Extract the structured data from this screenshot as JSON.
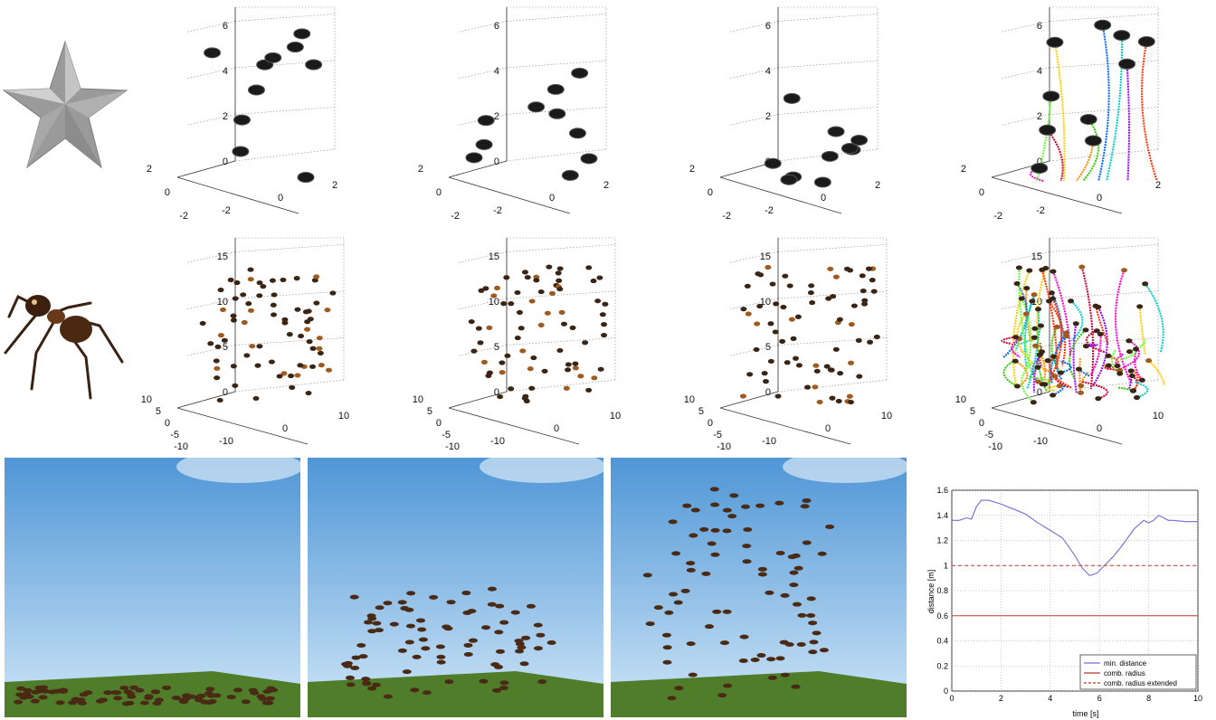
{
  "star_plots": {
    "z_ticks": [
      "0",
      "2",
      "4",
      "6"
    ],
    "y_ticks": [
      "2",
      "0",
      "-2"
    ],
    "x_ticks": [
      "-2",
      "0",
      "2"
    ]
  },
  "ant_plots": {
    "z_ticks": [
      "0",
      "5",
      "10",
      "15"
    ],
    "y_ticks": [
      "10",
      "5",
      "0",
      "-5",
      "-10"
    ],
    "x_ticks": [
      "-10",
      "0",
      "10"
    ]
  },
  "distance_chart": {
    "type": "line",
    "title": "",
    "xlabel": "time [s]",
    "ylabel": "distance [m]",
    "xlim": [
      0,
      10
    ],
    "ylim": [
      0,
      1.6
    ],
    "x_ticks": [
      "0",
      "2",
      "4",
      "6",
      "8",
      "10"
    ],
    "y_ticks": [
      "0",
      "0.2",
      "0.4",
      "0.6",
      "0.8",
      "1",
      "1.2",
      "1.4",
      "1.6"
    ],
    "grid": true,
    "legend_position": "bottom-right",
    "series": [
      {
        "name": "min. distance",
        "color": "#6f6fd0",
        "x": [
          0,
          0.3,
          0.6,
          0.8,
          1.0,
          1.2,
          1.5,
          2.0,
          2.5,
          3.0,
          3.5,
          4.0,
          4.5,
          5.0,
          5.3,
          5.6,
          5.9,
          6.2,
          6.6,
          7.0,
          7.4,
          7.8,
          8.0,
          8.2,
          8.4,
          8.6,
          8.8,
          9.0,
          9.5,
          10.0
        ],
        "y": [
          1.36,
          1.36,
          1.38,
          1.37,
          1.47,
          1.52,
          1.52,
          1.49,
          1.45,
          1.41,
          1.34,
          1.28,
          1.22,
          1.08,
          0.98,
          0.92,
          0.94,
          1.0,
          1.08,
          1.18,
          1.29,
          1.36,
          1.34,
          1.36,
          1.4,
          1.38,
          1.36,
          1.36,
          1.35,
          1.35
        ]
      },
      {
        "name": "comb. radius",
        "color": "#c0392b",
        "style": "solid",
        "x": [
          0,
          10
        ],
        "y": [
          0.6,
          0.6
        ]
      },
      {
        "name": "comb. radius extended",
        "color": "#c0392b",
        "style": "dashed",
        "x": [
          0,
          10
        ],
        "y": [
          1.0,
          1.0
        ]
      }
    ]
  },
  "colors": {
    "sky_top": "#4f96d6",
    "sky_bottom": "#cfe6f7",
    "ground": "#4f7d2a",
    "ant_body": "#4a2a14",
    "disk": "#222222"
  }
}
